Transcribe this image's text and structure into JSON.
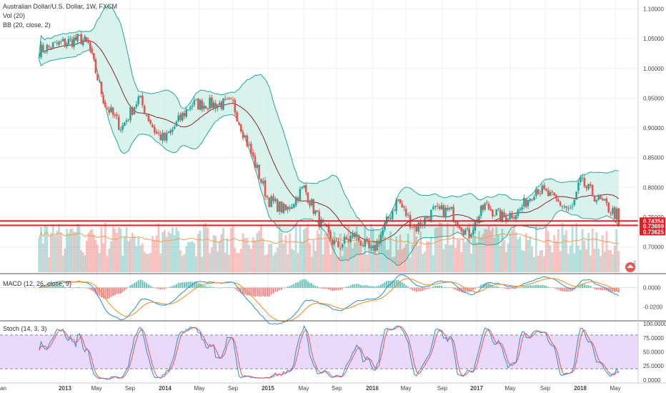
{
  "header": {
    "symbol_title": "Australian Dollar/U.S. Dollar, 1W, FXCM",
    "vol_label": "Vol (20)",
    "bb_label": "BB (20, close, 2)"
  },
  "macd_label": "MACD (12, 26, close, 9)",
  "stoch_label": "Stoch (14, 3, 3)",
  "price_tags": [
    "0.74354",
    "0.73699",
    "0.73625"
  ],
  "badge_number": "2",
  "colors": {
    "up": "#26a69a",
    "down": "#ef5350",
    "band_fill": "#c8ece4",
    "band_line": "#26a69a",
    "basis": "#8b2332",
    "support": "#e41e26",
    "macd_line": "#2a8cd8",
    "signal_line": "#f08c1e",
    "stoch_k": "#2a8cd8",
    "stoch_d": "#ef5350",
    "stoch_band": "#e6d0fa",
    "vol_ma": "#f0a050"
  },
  "chart_data": [
    {
      "type": "candlestick",
      "title": "Australian Dollar/U.S. Dollar, 1W, FXCM",
      "x_tick_labels": [
        "2013",
        "May",
        "Sep",
        "2014",
        "May",
        "Sep",
        "2015",
        "May",
        "Sep",
        "2016",
        "May",
        "Sep",
        "2017",
        "May",
        "Sep",
        "2018",
        "May"
      ],
      "y_tick_labels": [
        "1.10000",
        "1.05000",
        "1.00000",
        "0.95000",
        "0.90000",
        "0.85000",
        "0.80000",
        "0.75000",
        "0.70000"
      ],
      "ylim": [
        0.655,
        1.115
      ],
      "support_levels": [
        0.74354,
        0.73625
      ],
      "anchors": [
        {
          "date": "2012-10",
          "close": 1.03
        },
        {
          "date": "2012-12",
          "close": 1.04
        },
        {
          "date": "2013-03",
          "close": 1.05
        },
        {
          "date": "2013-04",
          "close": 1.04
        },
        {
          "date": "2013-06",
          "close": 0.94
        },
        {
          "date": "2013-08",
          "close": 0.9
        },
        {
          "date": "2013-10",
          "close": 0.95
        },
        {
          "date": "2013-12",
          "close": 0.89
        },
        {
          "date": "2014-01",
          "close": 0.88
        },
        {
          "date": "2014-04",
          "close": 0.94
        },
        {
          "date": "2014-07",
          "close": 0.94
        },
        {
          "date": "2014-09",
          "close": 0.94
        },
        {
          "date": "2014-11",
          "close": 0.86
        },
        {
          "date": "2015-01",
          "close": 0.78
        },
        {
          "date": "2015-03",
          "close": 0.76
        },
        {
          "date": "2015-05",
          "close": 0.8
        },
        {
          "date": "2015-07",
          "close": 0.74
        },
        {
          "date": "2015-09",
          "close": 0.7
        },
        {
          "date": "2015-11",
          "close": 0.72
        },
        {
          "date": "2016-01",
          "close": 0.69
        },
        {
          "date": "2016-03",
          "close": 0.75
        },
        {
          "date": "2016-04",
          "close": 0.78
        },
        {
          "date": "2016-06",
          "close": 0.73
        },
        {
          "date": "2016-08",
          "close": 0.76
        },
        {
          "date": "2016-10",
          "close": 0.76
        },
        {
          "date": "2016-12",
          "close": 0.72
        },
        {
          "date": "2017-02",
          "close": 0.77
        },
        {
          "date": "2017-04",
          "close": 0.75
        },
        {
          "date": "2017-06",
          "close": 0.76
        },
        {
          "date": "2017-08",
          "close": 0.8
        },
        {
          "date": "2017-10",
          "close": 0.78
        },
        {
          "date": "2017-12",
          "close": 0.76
        },
        {
          "date": "2018-01",
          "close": 0.81
        },
        {
          "date": "2018-03",
          "close": 0.78
        },
        {
          "date": "2018-05",
          "close": 0.755
        }
      ],
      "last_price": 0.73699
    },
    {
      "type": "bar",
      "title": "Vol (20)"
    },
    {
      "type": "line",
      "title": "MACD (12, 26, close, 9)",
      "y_tick_labels": [
        "0.0000",
        "-0.0200"
      ],
      "ylim": [
        -0.034,
        0.014
      ]
    },
    {
      "type": "line",
      "title": "Stoch (14, 3, 3)",
      "y_tick_labels": [
        "100.0000",
        "75.0000",
        "50.0000",
        "25.0000",
        "0.0000"
      ],
      "ylim": [
        -4,
        104
      ],
      "band": [
        20,
        80
      ]
    }
  ]
}
